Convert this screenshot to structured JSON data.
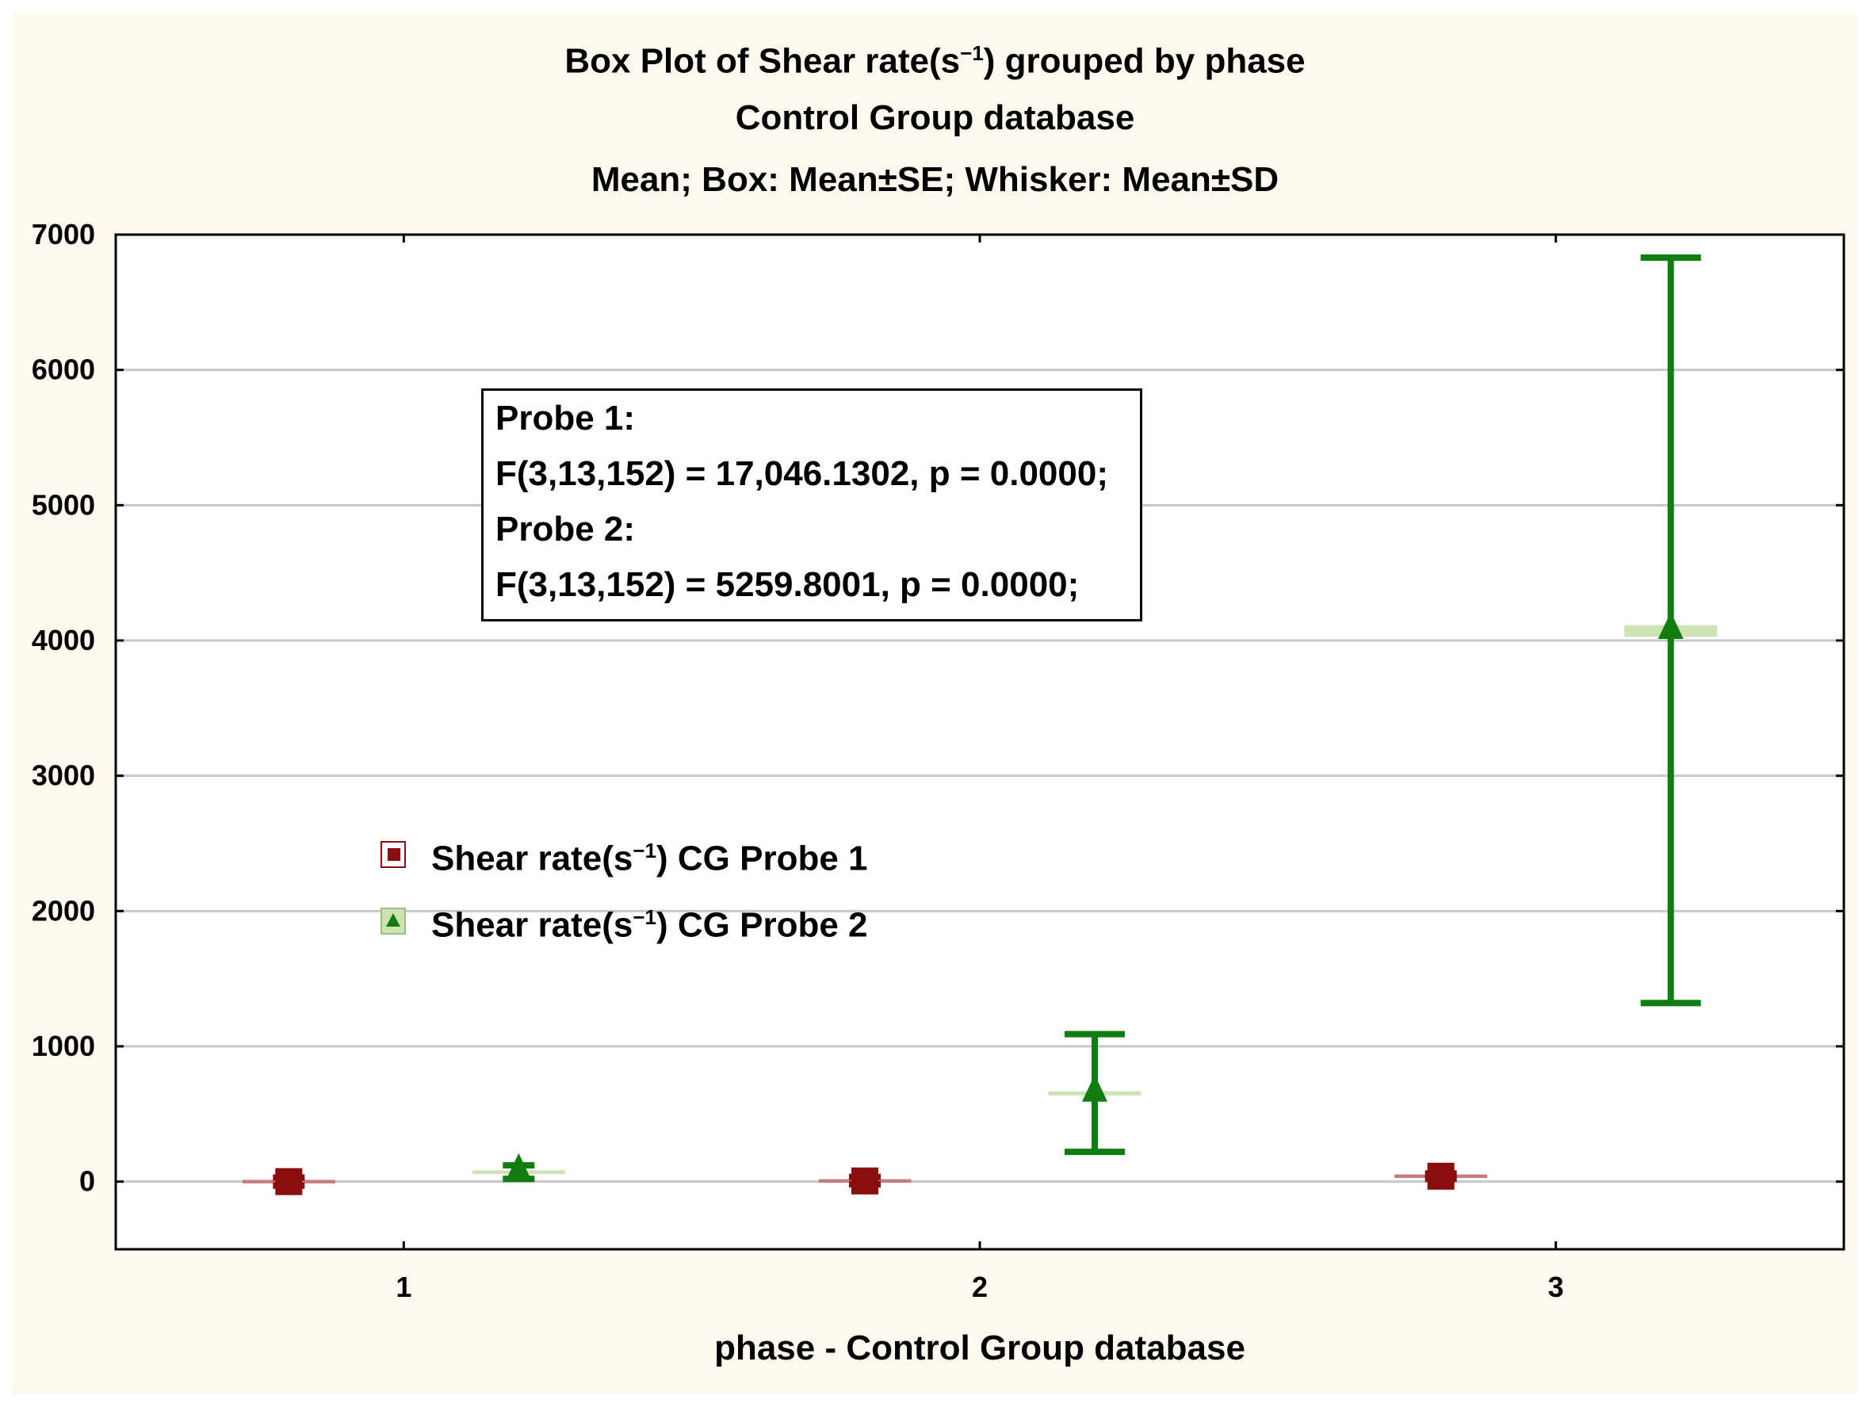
{
  "chart_data": {
    "type": "box",
    "title": "Box Plot of Shear rate(s",
    "title_sup": "−1",
    "title_suffix": ") grouped by  phase",
    "subtitle": "Control Group database",
    "subtitle2": "Mean; Box: Mean±SE; Whisker: Mean±SD",
    "xlabel": "phase  - Control Group database",
    "ylabel": "",
    "categories": [
      "1",
      "2",
      "3"
    ],
    "ylim": [
      -500,
      7000
    ],
    "yticks": [
      0,
      1000,
      2000,
      3000,
      4000,
      5000,
      6000,
      7000
    ],
    "grid": true,
    "legend_position": "left-middle",
    "series": [
      {
        "name": "Shear rate(s",
        "name_sup": "−1",
        "name_suffix": ") CG Probe 1",
        "color": "#8b0e0e",
        "box_color": "#c77b7b",
        "marker": "square",
        "points": [
          {
            "category": "1",
            "mean": 0,
            "se_low": -10,
            "se_high": 10,
            "sd_low": -30,
            "sd_high": 30
          },
          {
            "category": "2",
            "mean": 5,
            "se_low": -5,
            "se_high": 15,
            "sd_low": -20,
            "sd_high": 35
          },
          {
            "category": "3",
            "mean": 40,
            "se_low": 30,
            "se_high": 50,
            "sd_low": 20,
            "sd_high": 60
          }
        ]
      },
      {
        "name": "Shear rate(s",
        "name_sup": "−1",
        "name_suffix": ") CG Probe 2",
        "color": "#0f7d0f",
        "box_color": "#cde3b3",
        "marker": "triangle",
        "points": [
          {
            "category": "1",
            "mean": 70,
            "se_low": 60,
            "se_high": 80,
            "sd_low": 20,
            "sd_high": 120
          },
          {
            "category": "2",
            "mean": 650,
            "se_low": 640,
            "se_high": 665,
            "sd_low": 220,
            "sd_high": 1090
          },
          {
            "category": "3",
            "mean": 4070,
            "se_low": 4030,
            "se_high": 4110,
            "sd_low": 1320,
            "sd_high": 6830
          }
        ]
      }
    ],
    "annotation": {
      "line1": " Probe 1:",
      "line2": "F(3,13,152) = 17,046.1302, p = 0.0000;",
      "line3": "Probe 2:",
      "line4": "F(3,13,152) = 5259.8001, p = 0.0000;"
    }
  }
}
